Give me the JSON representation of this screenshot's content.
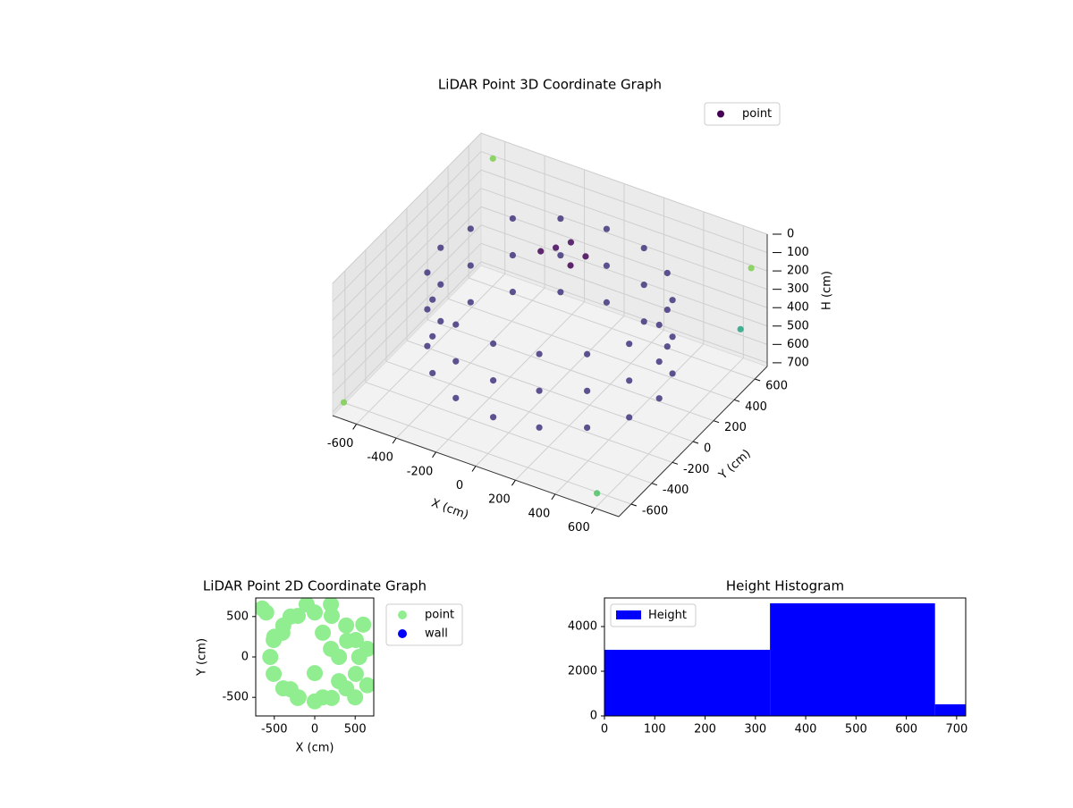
{
  "chart_data": [
    {
      "type": "scatter3d",
      "title": "LiDAR Point 3D Coordinate Graph",
      "x_label": "X (cm)",
      "y_label": "Y (cm)",
      "z_label": "H (cm)",
      "xlim": [
        -720,
        720
      ],
      "ylim": [
        -720,
        720
      ],
      "zlim": [
        0,
        720
      ],
      "z_inverted": true,
      "xticks": [
        -600,
        -400,
        -200,
        0,
        200,
        400,
        600
      ],
      "yticks": [
        -600,
        -400,
        -200,
        0,
        200,
        400,
        600
      ],
      "zticks": [
        0,
        100,
        200,
        300,
        400,
        500,
        600,
        700
      ],
      "grid": true,
      "legend": "upper right",
      "colormap": "viridis",
      "series": [
        {
          "name": "point",
          "color": "#440154",
          "x": [
            550,
            508,
            389,
            210,
            0,
            -210,
            -389,
            -508,
            -550,
            -508,
            -389,
            -210,
            0,
            210,
            389,
            508,
            550,
            508,
            389,
            210,
            0,
            -210,
            -389,
            -508,
            -550,
            -508,
            -389,
            -210,
            0,
            210,
            389,
            508,
            550,
            508,
            389,
            210,
            0,
            -210,
            -389,
            -508,
            -550,
            -508,
            -389,
            -210,
            0,
            210,
            389,
            508,
            -100,
            -50,
            0,
            -150,
            50,
            -650,
            600,
            700,
            -700,
            650
          ],
          "y": [
            0,
            210,
            389,
            508,
            550,
            508,
            389,
            210,
            0,
            -210,
            -389,
            -508,
            -550,
            -508,
            -389,
            -210,
            0,
            210,
            389,
            508,
            550,
            508,
            389,
            210,
            0,
            -210,
            -389,
            -508,
            -550,
            -508,
            -389,
            -210,
            0,
            210,
            389,
            508,
            550,
            508,
            389,
            210,
            0,
            -210,
            -389,
            -508,
            -550,
            -508,
            -389,
            -210,
            250,
            300,
            200,
            200,
            250,
            700,
            -700,
            500,
            -650,
            700
          ],
          "z": [
            150,
            150,
            150,
            150,
            150,
            150,
            150,
            150,
            150,
            150,
            150,
            150,
            150,
            150,
            150,
            150,
            350,
            350,
            350,
            350,
            350,
            350,
            350,
            350,
            350,
            350,
            350,
            350,
            350,
            350,
            350,
            350,
            550,
            550,
            550,
            550,
            550,
            550,
            550,
            550,
            550,
            550,
            550,
            550,
            550,
            550,
            550,
            550,
            120,
            100,
            150,
            130,
            110,
            100,
            650,
            400,
            680,
            200
          ]
        }
      ]
    },
    {
      "type": "scatter",
      "title": "LiDAR Point 2D Coordinate Graph",
      "x_label": "X (cm)",
      "y_label": "Y (cm)",
      "xlim": [
        -730,
        730
      ],
      "ylim": [
        -730,
        730
      ],
      "xticks": [
        -500,
        0,
        500
      ],
      "yticks": [
        -500,
        0,
        500
      ],
      "legend": "outside",
      "series": [
        {
          "name": "point",
          "color": "#90ee90",
          "x": [
            550,
            508,
            389,
            210,
            0,
            -210,
            -389,
            -508,
            -550,
            -508,
            -389,
            -210,
            0,
            210,
            389,
            508,
            200,
            300,
            100,
            400,
            0,
            100,
            300,
            500,
            -600,
            -500,
            -400,
            -200,
            -300,
            600,
            -650,
            -300,
            -100,
            200,
            650,
            650
          ],
          "y": [
            0,
            210,
            389,
            508,
            550,
            508,
            389,
            210,
            0,
            -210,
            -389,
            -508,
            -550,
            -508,
            -389,
            -210,
            100,
            -300,
            -500,
            200,
            -200,
            300,
            0,
            -500,
            550,
            250,
            300,
            -500,
            -400,
            400,
            600,
            500,
            650,
            650,
            -350,
            100
          ]
        },
        {
          "name": "wall",
          "color": "#0000ff",
          "x": [],
          "y": []
        }
      ]
    },
    {
      "type": "histogram",
      "title": "Height Histogram",
      "bins": [
        0,
        329,
        657,
        718
      ],
      "values": [
        2960,
        5040,
        520
      ],
      "xlim": [
        0,
        718
      ],
      "ylim": [
        0,
        5280
      ],
      "xticks": [
        0,
        100,
        200,
        300,
        400,
        500,
        600,
        700
      ],
      "yticks": [
        0,
        2000,
        4000
      ],
      "series_name": "Height",
      "color": "#0000ff",
      "legend": "upper left"
    }
  ]
}
